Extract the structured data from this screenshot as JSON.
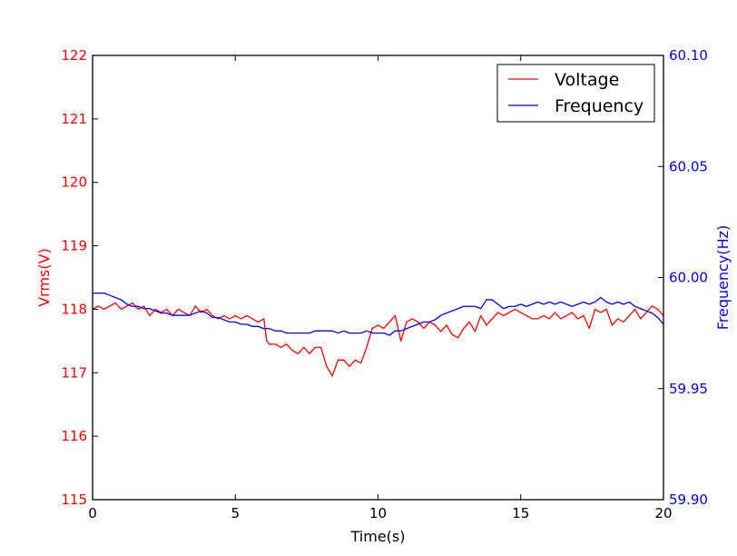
{
  "chart_data": {
    "type": "line",
    "title": "",
    "xlabel": "Time(s)",
    "ylabel_left": "Vrms(V)",
    "ylabel_right": "Frequency(Hz)",
    "xlim": [
      0,
      20
    ],
    "ylim_left": [
      115,
      122
    ],
    "ylim_right": [
      59.9,
      60.1
    ],
    "x_ticks": [
      "0",
      "5",
      "10",
      "15",
      "20"
    ],
    "y_left_ticks": [
      "115",
      "116",
      "117",
      "118",
      "119",
      "120",
      "121",
      "122"
    ],
    "y_right_ticks": [
      "59.90",
      "59.95",
      "60.00",
      "60.05",
      "60.10"
    ],
    "grid": false,
    "legend_position": "top-right",
    "colors": {
      "voltage": "#ff0000",
      "frequency": "#0000ff",
      "axis": "#000000"
    },
    "series": [
      {
        "name": "Voltage",
        "axis": "left",
        "x": [
          0,
          0.2,
          0.4,
          0.6,
          0.8,
          1.0,
          1.2,
          1.4,
          1.6,
          1.8,
          2.0,
          2.2,
          2.4,
          2.6,
          2.8,
          3.0,
          3.2,
          3.4,
          3.6,
          3.8,
          4.0,
          4.2,
          4.4,
          4.6,
          4.8,
          5.0,
          5.2,
          5.4,
          5.6,
          5.8,
          6.0,
          6.1,
          6.2,
          6.4,
          6.6,
          6.8,
          7.0,
          7.2,
          7.4,
          7.6,
          7.8,
          8.0,
          8.2,
          8.4,
          8.6,
          8.8,
          9.0,
          9.2,
          9.4,
          9.6,
          9.8,
          10.0,
          10.2,
          10.4,
          10.6,
          10.8,
          11.0,
          11.2,
          11.4,
          11.6,
          11.8,
          12.0,
          12.2,
          12.4,
          12.6,
          12.8,
          13.0,
          13.2,
          13.4,
          13.6,
          13.8,
          14.0,
          14.2,
          14.4,
          14.6,
          14.8,
          15.0,
          15.2,
          15.4,
          15.6,
          15.8,
          16.0,
          16.2,
          16.4,
          16.6,
          16.8,
          17.0,
          17.2,
          17.4,
          17.6,
          17.8,
          18.0,
          18.2,
          18.4,
          18.6,
          18.8,
          19.0,
          19.2,
          19.4,
          19.6,
          19.8,
          20.0
        ],
        "values": [
          118.0,
          118.05,
          118.0,
          118.05,
          118.1,
          118.0,
          118.05,
          118.1,
          118.0,
          118.05,
          117.9,
          118.0,
          117.95,
          118.0,
          117.9,
          118.0,
          117.95,
          117.9,
          118.05,
          117.95,
          118.0,
          117.9,
          117.85,
          117.9,
          117.85,
          117.9,
          117.85,
          117.9,
          117.85,
          117.8,
          117.85,
          117.5,
          117.45,
          117.45,
          117.4,
          117.45,
          117.35,
          117.3,
          117.4,
          117.3,
          117.4,
          117.4,
          117.1,
          116.95,
          117.2,
          117.2,
          117.1,
          117.2,
          117.15,
          117.4,
          117.7,
          117.75,
          117.7,
          117.8,
          117.9,
          117.5,
          117.8,
          117.85,
          117.8,
          117.7,
          117.8,
          117.75,
          117.65,
          117.75,
          117.6,
          117.55,
          117.7,
          117.8,
          117.65,
          117.9,
          117.75,
          117.85,
          117.95,
          117.9,
          117.95,
          118.0,
          117.95,
          117.9,
          117.85,
          117.85,
          117.9,
          117.85,
          117.95,
          117.85,
          117.9,
          117.95,
          117.85,
          117.9,
          117.7,
          118.0,
          117.95,
          118.0,
          117.75,
          117.85,
          117.8,
          117.9,
          118.0,
          117.85,
          117.95,
          118.05,
          118.0,
          117.9
        ]
      },
      {
        "name": "Frequency",
        "axis": "right",
        "x": [
          0,
          0.2,
          0.4,
          0.6,
          0.8,
          1.0,
          1.2,
          1.4,
          1.6,
          1.8,
          2.0,
          2.2,
          2.4,
          2.6,
          2.8,
          3.0,
          3.2,
          3.4,
          3.6,
          3.8,
          4.0,
          4.2,
          4.4,
          4.6,
          4.8,
          5.0,
          5.2,
          5.4,
          5.6,
          5.8,
          6.0,
          6.2,
          6.4,
          6.6,
          6.8,
          7.0,
          7.2,
          7.4,
          7.6,
          7.8,
          8.0,
          8.2,
          8.4,
          8.6,
          8.8,
          9.0,
          9.2,
          9.4,
          9.6,
          9.8,
          10.0,
          10.2,
          10.4,
          10.6,
          10.8,
          11.0,
          11.2,
          11.4,
          11.6,
          11.8,
          12.0,
          12.2,
          12.4,
          12.6,
          12.8,
          13.0,
          13.2,
          13.4,
          13.6,
          13.8,
          14.0,
          14.2,
          14.4,
          14.6,
          14.8,
          15.0,
          15.2,
          15.4,
          15.6,
          15.8,
          16.0,
          16.2,
          16.4,
          16.6,
          16.8,
          17.0,
          17.2,
          17.4,
          17.6,
          17.8,
          18.0,
          18.2,
          18.4,
          18.6,
          18.8,
          19.0,
          19.2,
          19.4,
          19.6,
          19.8,
          20.0
        ],
        "values": [
          59.993,
          59.993,
          59.993,
          59.992,
          59.991,
          59.99,
          59.988,
          59.987,
          59.987,
          59.986,
          59.986,
          59.985,
          59.984,
          59.984,
          59.983,
          59.983,
          59.983,
          59.983,
          59.984,
          59.985,
          59.984,
          59.982,
          59.982,
          59.981,
          59.98,
          59.98,
          59.979,
          59.979,
          59.978,
          59.978,
          59.977,
          59.977,
          59.976,
          59.976,
          59.975,
          59.975,
          59.975,
          59.975,
          59.975,
          59.976,
          59.976,
          59.976,
          59.976,
          59.975,
          59.976,
          59.975,
          59.975,
          59.975,
          59.976,
          59.975,
          59.975,
          59.975,
          59.974,
          59.976,
          59.976,
          59.977,
          59.978,
          59.979,
          59.98,
          59.98,
          59.981,
          59.983,
          59.984,
          59.985,
          59.986,
          59.987,
          59.987,
          59.987,
          59.986,
          59.99,
          59.99,
          59.988,
          59.986,
          59.987,
          59.987,
          59.988,
          59.987,
          59.988,
          59.989,
          59.988,
          59.989,
          59.988,
          59.989,
          59.988,
          59.987,
          59.988,
          59.989,
          59.988,
          59.989,
          59.991,
          59.989,
          59.988,
          59.989,
          59.988,
          59.989,
          59.987,
          59.986,
          59.985,
          59.984,
          59.982,
          59.979
        ]
      }
    ]
  }
}
